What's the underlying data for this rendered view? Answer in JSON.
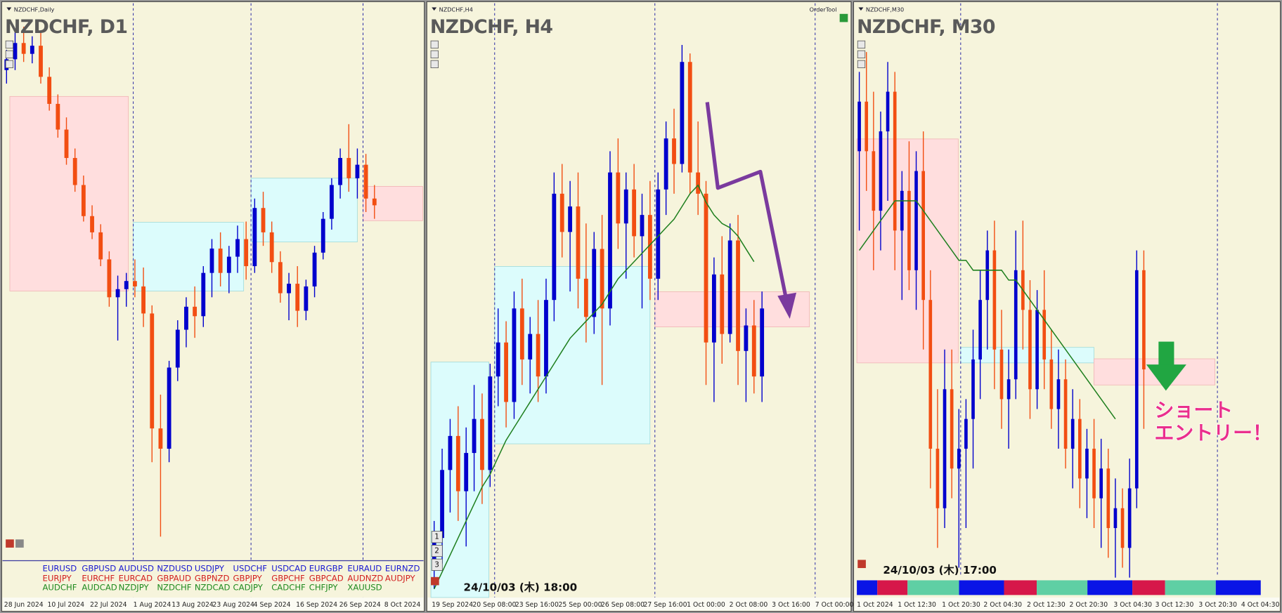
{
  "bull_color": "#0000cd",
  "bear_color": "#f24e12",
  "ma_color": "#1e7f1e",
  "order_tool": "OrderTool",
  "callout": [
    "ショート",
    "エントリー！"
  ],
  "buttons": [
    "1",
    "2",
    "3"
  ],
  "symbols": [
    [
      "EURUSD",
      "GBPUSD",
      "AUDUSD",
      "NZDUSD",
      "USDJPY",
      "USDCHF",
      "USDCAD",
      "EURGBP",
      "EURAUD",
      "EURNZD"
    ],
    [
      "EURJPY",
      "EURCHF",
      "EURCAD",
      "GBPAUD",
      "GBPNZD",
      "GBPJPY",
      "GBPCHF",
      "GBPCAD",
      "AUDNZD",
      "AUDJPY"
    ],
    [
      "AUDCHF",
      "AUDCAD",
      "NZDJPY",
      "NZDCHF",
      "NZDCAD",
      "CADJPY",
      "CADCHF",
      "CHFJPY",
      "XAUUSD"
    ]
  ],
  "panels": [
    {
      "window_title": "NZDCHF,Daily",
      "title": "NZDCHF, D1",
      "time_labels": [
        "28 Jun 2024",
        "10 Jul 2024",
        "22 Jul 2024",
        "1 Aug 2024",
        "13 Aug 2024",
        "23 Aug 2024",
        "4 Sep 2024",
        "16 Sep 2024",
        "26 Sep 2024",
        "8 Oct 2024"
      ],
      "ylim": [
        0.504,
        0.548
      ],
      "candles": [
        [
          0.543,
          0.5445,
          0.542,
          0.5438
        ],
        [
          0.5438,
          0.546,
          0.543,
          0.545
        ],
        [
          0.545,
          0.5462,
          0.5436,
          0.5442
        ],
        [
          0.5442,
          0.5455,
          0.5435,
          0.5448
        ],
        [
          0.5448,
          0.5458,
          0.542,
          0.5425
        ],
        [
          0.5425,
          0.5432,
          0.54,
          0.5405
        ],
        [
          0.5405,
          0.5412,
          0.538,
          0.5386
        ],
        [
          0.5386,
          0.5395,
          0.536,
          0.5365
        ],
        [
          0.5365,
          0.5372,
          0.534,
          0.5345
        ],
        [
          0.5345,
          0.5352,
          0.5318,
          0.5322
        ],
        [
          0.5322,
          0.533,
          0.5305,
          0.531
        ],
        [
          0.531,
          0.5316,
          0.5285,
          0.529
        ],
        [
          0.529,
          0.5296,
          0.5255,
          0.5262
        ],
        [
          0.5262,
          0.5278,
          0.523,
          0.5268
        ],
        [
          0.5268,
          0.528,
          0.5255,
          0.5274
        ],
        [
          0.5274,
          0.529,
          0.5262,
          0.527
        ],
        [
          0.527,
          0.5284,
          0.524,
          0.525
        ],
        [
          0.525,
          0.5256,
          0.514,
          0.5165
        ],
        [
          0.5165,
          0.519,
          0.5085,
          0.515
        ],
        [
          0.515,
          0.5215,
          0.514,
          0.521
        ],
        [
          0.521,
          0.5245,
          0.52,
          0.5238
        ],
        [
          0.5238,
          0.5262,
          0.5225,
          0.5255
        ],
        [
          0.5255,
          0.527,
          0.5232,
          0.5248
        ],
        [
          0.5248,
          0.5285,
          0.524,
          0.528
        ],
        [
          0.528,
          0.5305,
          0.5262,
          0.5298
        ],
        [
          0.5298,
          0.531,
          0.527,
          0.528
        ],
        [
          0.528,
          0.53,
          0.5265,
          0.5292
        ],
        [
          0.5292,
          0.5315,
          0.528,
          0.5305
        ],
        [
          0.5305,
          0.5318,
          0.5275,
          0.5285
        ],
        [
          0.5285,
          0.5335,
          0.528,
          0.5328
        ],
        [
          0.5328,
          0.534,
          0.53,
          0.531
        ],
        [
          0.531,
          0.5318,
          0.528,
          0.5288
        ],
        [
          0.5288,
          0.5296,
          0.5258,
          0.5265
        ],
        [
          0.5265,
          0.528,
          0.5245,
          0.5272
        ],
        [
          0.5272,
          0.5285,
          0.524,
          0.5252
        ],
        [
          0.5252,
          0.5275,
          0.5245,
          0.527
        ],
        [
          0.527,
          0.53,
          0.5262,
          0.5295
        ],
        [
          0.5295,
          0.5325,
          0.529,
          0.532
        ],
        [
          0.532,
          0.535,
          0.5312,
          0.5345
        ],
        [
          0.5345,
          0.5372,
          0.5335,
          0.5365
        ],
        [
          0.5365,
          0.539,
          0.534,
          0.535
        ],
        [
          0.535,
          0.5372,
          0.5335,
          0.536
        ],
        [
          0.536,
          0.5368,
          0.5325,
          0.5335
        ],
        [
          0.5335,
          0.5345,
          0.532,
          0.533
        ]
      ]
    },
    {
      "window_title": "NZDCHF,H4",
      "title": "NZDCHF, H4",
      "timestamp": "24/10/03 (木) 18:00",
      "time_labels": [
        "19 Sep 2024",
        "20 Sep 08:00",
        "23 Sep 16:00",
        "25 Sep 00:00",
        "26 Sep 08:00",
        "27 Sep 16:00",
        "1 Oct 00:00",
        "2 Oct 08:00",
        "3 Oct 16:00",
        "7 Oct 00:00"
      ],
      "ylim": [
        0.525,
        0.539
      ],
      "candles": [
        [
          0.5258,
          0.5268,
          0.5252,
          0.5264
        ],
        [
          0.5264,
          0.5285,
          0.5258,
          0.528
        ],
        [
          0.528,
          0.5292,
          0.527,
          0.5288
        ],
        [
          0.5288,
          0.5295,
          0.5268,
          0.5275
        ],
        [
          0.5275,
          0.529,
          0.5262,
          0.5284
        ],
        [
          0.5284,
          0.53,
          0.5275,
          0.5292
        ],
        [
          0.5292,
          0.5298,
          0.5272,
          0.528
        ],
        [
          0.528,
          0.5305,
          0.5276,
          0.5302
        ],
        [
          0.5302,
          0.5318,
          0.5295,
          0.531
        ],
        [
          0.531,
          0.5315,
          0.529,
          0.5296
        ],
        [
          0.5296,
          0.5322,
          0.5292,
          0.5318
        ],
        [
          0.5318,
          0.5325,
          0.53,
          0.5306
        ],
        [
          0.5306,
          0.5316,
          0.5298,
          0.5312
        ],
        [
          0.5312,
          0.532,
          0.5296,
          0.5302
        ],
        [
          0.5302,
          0.5325,
          0.5298,
          0.532
        ],
        [
          0.532,
          0.535,
          0.5315,
          0.5345
        ],
        [
          0.5345,
          0.5352,
          0.533,
          0.5336
        ],
        [
          0.5336,
          0.5348,
          0.5322,
          0.5342
        ],
        [
          0.5342,
          0.535,
          0.5318,
          0.5325
        ],
        [
          0.5325,
          0.5338,
          0.531,
          0.5316
        ],
        [
          0.5316,
          0.5336,
          0.5312,
          0.5332
        ],
        [
          0.5332,
          0.534,
          0.53,
          0.5318
        ],
        [
          0.5318,
          0.5355,
          0.5314,
          0.535
        ],
        [
          0.535,
          0.5358,
          0.5332,
          0.5338
        ],
        [
          0.5338,
          0.535,
          0.5325,
          0.5346
        ],
        [
          0.5346,
          0.5352,
          0.533,
          0.5335
        ],
        [
          0.5335,
          0.5345,
          0.5318,
          0.534
        ],
        [
          0.534,
          0.5348,
          0.532,
          0.5325
        ],
        [
          0.5325,
          0.535,
          0.532,
          0.5346
        ],
        [
          0.5346,
          0.5362,
          0.534,
          0.5358
        ],
        [
          0.5358,
          0.5365,
          0.5345,
          0.5352
        ],
        [
          0.5352,
          0.538,
          0.535,
          0.5376
        ],
        [
          0.5376,
          0.5378,
          0.5345,
          0.535
        ],
        [
          0.535,
          0.5362,
          0.534,
          0.5345
        ],
        [
          0.5345,
          0.5348,
          0.53,
          0.531
        ],
        [
          0.531,
          0.533,
          0.5296,
          0.5326
        ],
        [
          0.5326,
          0.5335,
          0.5305,
          0.5312
        ],
        [
          0.5312,
          0.5338,
          0.531,
          0.5334
        ],
        [
          0.5334,
          0.534,
          0.53,
          0.5308
        ],
        [
          0.5308,
          0.5318,
          0.5296,
          0.5314
        ],
        [
          0.5314,
          0.532,
          0.5298,
          0.5302
        ],
        [
          0.5302,
          0.5322,
          0.5296,
          0.5318
        ]
      ],
      "moving_average": [
        0.5252,
        0.5256,
        0.526,
        0.5264,
        0.5268,
        0.5272,
        0.5276,
        0.5279,
        0.5283,
        0.5287,
        0.529,
        0.5293,
        0.5296,
        0.5299,
        0.5302,
        0.5305,
        0.5308,
        0.5311,
        0.5313,
        0.5315,
        0.5317,
        0.5319,
        0.5322,
        0.5325,
        0.5327,
        0.5329,
        0.5331,
        0.5333,
        0.5335,
        0.5337,
        0.5339,
        0.5342,
        0.5345,
        0.5347,
        0.5343,
        0.534,
        0.5338,
        0.5337,
        0.5335,
        0.5332,
        0.5329,
        null
      ]
    },
    {
      "window_title": "NZDCHF,M30",
      "title": "NZDCHF, M30",
      "timestamp": "24/10/03 (木) 17:00",
      "time_labels": [
        "1 Oct 2024",
        "1 Oct 12:30",
        "1 Oct 20:30",
        "2 Oct 04:30",
        "2 Oct 12:30",
        "2 Oct 20:30",
        "3 Oct 04:30",
        "3 Oct 12:30",
        "3 Oct 20:30",
        "4 Oct 04:30"
      ],
      "ylim": [
        0.5285,
        0.5345
      ],
      "candles": [
        [
          0.533,
          0.5338,
          0.5322,
          0.5335
        ],
        [
          0.5335,
          0.534,
          0.5326,
          0.533
        ],
        [
          0.533,
          0.5336,
          0.5318,
          0.5324
        ],
        [
          0.5324,
          0.5334,
          0.532,
          0.5332
        ],
        [
          0.5332,
          0.5339,
          0.5325,
          0.5336
        ],
        [
          0.5336,
          0.5338,
          0.5318,
          0.5322
        ],
        [
          0.5322,
          0.5328,
          0.5315,
          0.5326
        ],
        [
          0.5326,
          0.5331,
          0.5316,
          0.5318
        ],
        [
          0.5318,
          0.533,
          0.5314,
          0.5328
        ],
        [
          0.5328,
          0.5332,
          0.531,
          0.5315
        ],
        [
          0.5315,
          0.5318,
          0.5296,
          0.53
        ],
        [
          0.53,
          0.5306,
          0.529,
          0.5294
        ],
        [
          0.5294,
          0.531,
          0.5292,
          0.5306
        ],
        [
          0.5306,
          0.531,
          0.5295,
          0.5298
        ],
        [
          0.5298,
          0.5304,
          0.5288,
          0.53
        ],
        [
          0.53,
          0.5305,
          0.5292,
          0.5303
        ],
        [
          0.5303,
          0.5312,
          0.5298,
          0.5309
        ],
        [
          0.5309,
          0.5318,
          0.5305,
          0.5315
        ],
        [
          0.5315,
          0.5322,
          0.531,
          0.532
        ],
        [
          0.532,
          0.5323,
          0.5306,
          0.531
        ],
        [
          0.531,
          0.5314,
          0.5302,
          0.5305
        ],
        [
          0.5305,
          0.531,
          0.53,
          0.5307
        ],
        [
          0.5307,
          0.5322,
          0.5305,
          0.5318
        ],
        [
          0.5318,
          0.5323,
          0.531,
          0.5314
        ],
        [
          0.5314,
          0.5317,
          0.5303,
          0.5306
        ],
        [
          0.5306,
          0.5316,
          0.5304,
          0.5314
        ],
        [
          0.5314,
          0.5318,
          0.5306,
          0.5309
        ],
        [
          0.5309,
          0.5312,
          0.5302,
          0.5304
        ],
        [
          0.5304,
          0.531,
          0.53,
          0.5307
        ],
        [
          0.5307,
          0.5309,
          0.5298,
          0.53
        ],
        [
          0.53,
          0.5306,
          0.5296,
          0.5303
        ],
        [
          0.5303,
          0.5305,
          0.5294,
          0.5297
        ],
        [
          0.5297,
          0.5302,
          0.5293,
          0.53
        ],
        [
          0.53,
          0.5303,
          0.5292,
          0.5295
        ],
        [
          0.5295,
          0.5301,
          0.529,
          0.5298
        ],
        [
          0.5298,
          0.53,
          0.5289,
          0.5292
        ],
        [
          0.5292,
          0.5297,
          0.5287,
          0.5294
        ],
        [
          0.5294,
          0.5296,
          0.5288,
          0.529
        ],
        [
          0.529,
          0.5299,
          0.5287,
          0.5296
        ],
        [
          0.5296,
          0.532,
          0.5294,
          0.5318
        ],
        [
          0.5318,
          0.532,
          0.5302,
          0.5308
        ]
      ],
      "moving_average": [
        0.532,
        0.5321,
        0.5322,
        0.5323,
        0.5324,
        0.5325,
        0.5325,
        0.5325,
        0.5325,
        0.5324,
        0.5323,
        0.5322,
        0.5321,
        0.532,
        0.5319,
        0.5319,
        0.5318,
        0.5318,
        0.5318,
        0.5318,
        0.5318,
        0.5317,
        0.5317,
        0.5316,
        0.5315,
        0.5314,
        0.5313,
        0.5312,
        0.5311,
        0.531,
        0.5309,
        0.5308,
        0.5307,
        0.5306,
        0.5305,
        0.5304,
        0.5303,
        null,
        null,
        null,
        null
      ]
    }
  ]
}
